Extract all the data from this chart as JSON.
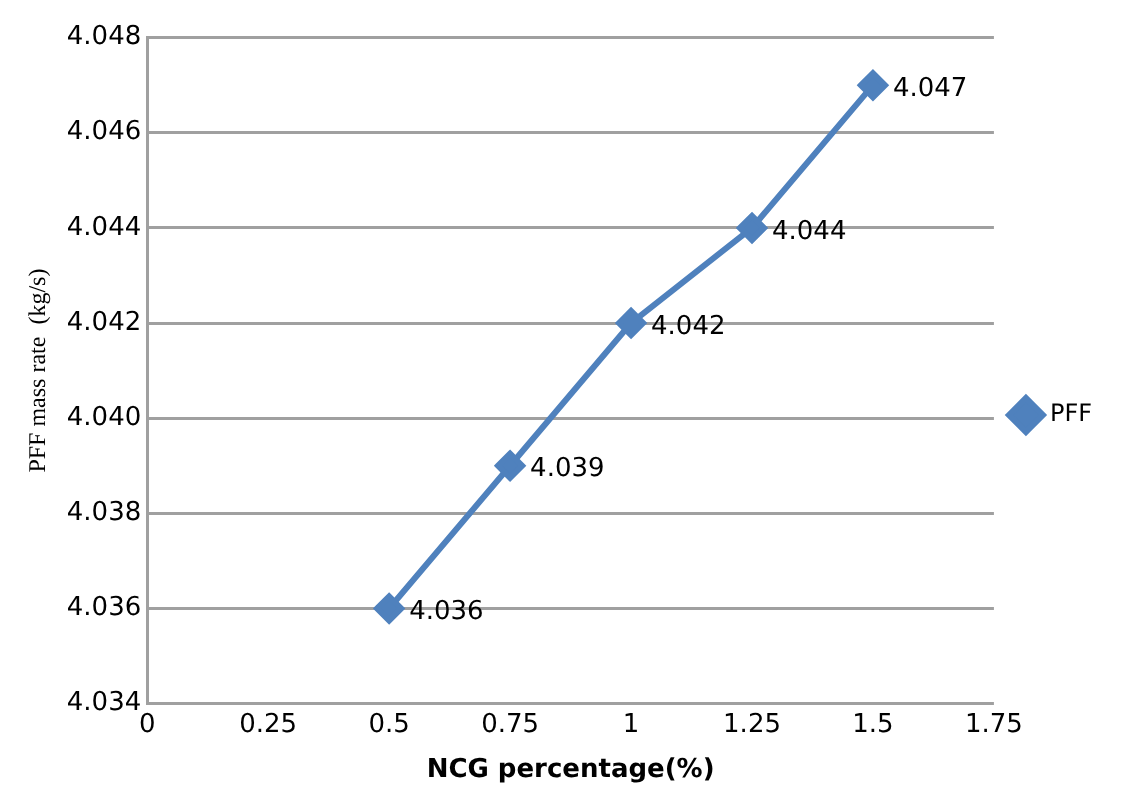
{
  "chart_data": {
    "type": "line",
    "xlabel": "NCG percentage(%)",
    "ylabel": "PFF mass rate  (kg/s)",
    "x": [
      0.5,
      0.75,
      1,
      1.25,
      1.5
    ],
    "series": [
      {
        "name": "PFF",
        "color": "#4f81bd",
        "values": [
          4.036,
          4.039,
          4.042,
          4.044,
          4.047
        ]
      }
    ],
    "xlim": [
      0,
      1.75
    ],
    "xticks": [
      0,
      0.25,
      0.5,
      0.75,
      1,
      1.25,
      1.5,
      1.75
    ],
    "ylim": [
      4.034,
      4.048
    ],
    "yticks": [
      4.034,
      4.036,
      4.038,
      {
        "value": 4.04,
        "label": "4.040"
      },
      4.042,
      4.044,
      4.046,
      4.048
    ],
    "grid": "y",
    "legend": "right",
    "marker": "diamond",
    "line_style": "solid",
    "data_labels": true
  }
}
